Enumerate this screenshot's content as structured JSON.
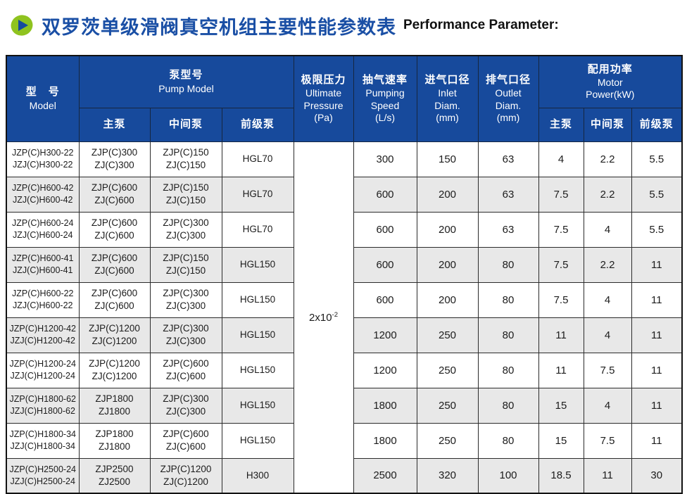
{
  "page": {
    "title_zh": "双罗茨单级滑阀真空机组主要性能参数表",
    "title_en": "Performance Parameter:",
    "colors": {
      "header_bg": "#174A9C",
      "title_blue": "#1A4FA5",
      "icon_green": "#8FC31F",
      "icon_triangle_blue": "#164A9E",
      "alt_row_gray": "#E8E8E8",
      "border_dark": "#121212"
    }
  },
  "table": {
    "header": {
      "model": [
        "型　号",
        "Model"
      ],
      "pump_model": [
        "泵型号",
        "Pump Model"
      ],
      "pump_sub": [
        "主泵",
        "中间泵",
        "前级泵"
      ],
      "ultimate_pressure": [
        "极限压力",
        "Ultimate",
        "Pressure",
        "(Pa)"
      ],
      "pumping_speed": [
        "抽气速率",
        "Pumping",
        "Speed",
        "(L/s)"
      ],
      "inlet": [
        "进气口径",
        "Inlet",
        "Diam.",
        "(mm)"
      ],
      "outlet": [
        "排气口径",
        "Outlet",
        "Diam.",
        "(mm)"
      ],
      "motor_power": [
        "配用功率",
        "Motor",
        "Power(kW)"
      ],
      "power_sub": [
        "主泵",
        "中间泵",
        "前级泵"
      ]
    },
    "ultimate_pressure": {
      "base": "2x10",
      "exponent": "-2"
    },
    "rows": [
      {
        "model": "JZP(C)H300-22\nJZJ(C)H300-22",
        "main_pump": "ZJP(C)300\nZJ(C)300",
        "mid_pump": "ZJP(C)150\nZJ(C)150",
        "fore_pump": "HGL70",
        "speed": "300",
        "inlet": "150",
        "outlet": "63",
        "power_main": "4",
        "power_mid": "2.2",
        "power_fore": "5.5"
      },
      {
        "model": "JZP(C)H600-42\nJZJ(C)H600-42",
        "main_pump": "ZJP(C)600\nZJ(C)600",
        "mid_pump": "ZJP(C)150\nZJ(C)150",
        "fore_pump": "HGL70",
        "speed": "600",
        "inlet": "200",
        "outlet": "63",
        "power_main": "7.5",
        "power_mid": "2.2",
        "power_fore": "5.5"
      },
      {
        "model": "JZP(C)H600-24\nJZJ(C)H600-24",
        "main_pump": "ZJP(C)600\nZJ(C)600",
        "mid_pump": "ZJP(C)300\nZJ(C)300",
        "fore_pump": "HGL70",
        "speed": "600",
        "inlet": "200",
        "outlet": "63",
        "power_main": "7.5",
        "power_mid": "4",
        "power_fore": "5.5"
      },
      {
        "model": "JZP(C)H600-41\nJZJ(C)H600-41",
        "main_pump": "ZJP(C)600\nZJ(C)600",
        "mid_pump": "ZJP(C)150\nZJ(C)150",
        "fore_pump": "HGL150",
        "speed": "600",
        "inlet": "200",
        "outlet": "80",
        "power_main": "7.5",
        "power_mid": "2.2",
        "power_fore": "11"
      },
      {
        "model": "JZP(C)H600-22\nJZJ(C)H600-22",
        "main_pump": "ZJP(C)600\nZJ(C)600",
        "mid_pump": "ZJP(C)300\nZJ(C)300",
        "fore_pump": "HGL150",
        "speed": "600",
        "inlet": "200",
        "outlet": "80",
        "power_main": "7.5",
        "power_mid": "4",
        "power_fore": "11"
      },
      {
        "model": "JZP(C)H1200-42\nJZJ(C)H1200-42",
        "main_pump": "ZJP(C)1200\nZJ(C)1200",
        "mid_pump": "ZJP(C)300\nZJ(C)300",
        "fore_pump": "HGL150",
        "speed": "1200",
        "inlet": "250",
        "outlet": "80",
        "power_main": "11",
        "power_mid": "4",
        "power_fore": "11"
      },
      {
        "model": "JZP(C)H1200-24\nJZJ(C)H1200-24",
        "main_pump": "ZJP(C)1200\nZJ(C)1200",
        "mid_pump": "ZJP(C)600\nZJ(C)600",
        "fore_pump": "HGL150",
        "speed": "1200",
        "inlet": "250",
        "outlet": "80",
        "power_main": "11",
        "power_mid": "7.5",
        "power_fore": "11"
      },
      {
        "model": "JZP(C)H1800-62\nJZJ(C)H1800-62",
        "main_pump": "ZJP1800\nZJ1800",
        "mid_pump": "ZJP(C)300\nZJ(C)300",
        "fore_pump": "HGL150",
        "speed": "1800",
        "inlet": "250",
        "outlet": "80",
        "power_main": "15",
        "power_mid": "4",
        "power_fore": "11"
      },
      {
        "model": "JZP(C)H1800-34\nJZJ(C)H1800-34",
        "main_pump": "ZJP1800\nZJ1800",
        "mid_pump": "ZJP(C)600\nZJ(C)600",
        "fore_pump": "HGL150",
        "speed": "1800",
        "inlet": "250",
        "outlet": "80",
        "power_main": "15",
        "power_mid": "7.5",
        "power_fore": "11"
      },
      {
        "model": "JZP(C)H2500-24\nJZJ(C)H2500-24",
        "main_pump": "ZJP2500\nZJ2500",
        "mid_pump": "ZJP(C)1200\nZJ(C)1200",
        "fore_pump": "H300",
        "speed": "2500",
        "inlet": "320",
        "outlet": "100",
        "power_main": "18.5",
        "power_mid": "11",
        "power_fore": "30"
      }
    ]
  }
}
